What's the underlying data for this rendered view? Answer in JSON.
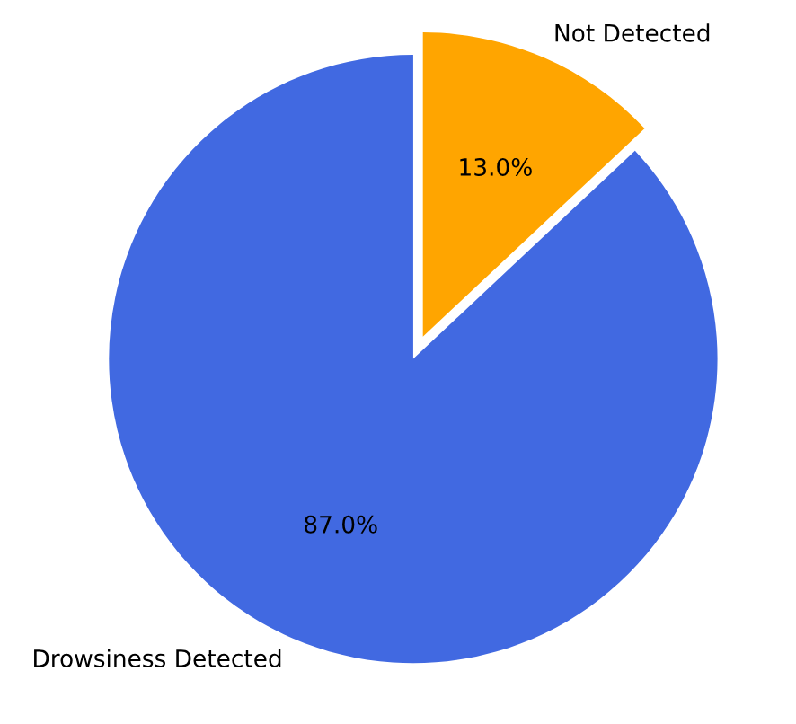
{
  "chart_data": {
    "type": "pie",
    "categories": [
      "Drowsiness Detected",
      "Not Detected"
    ],
    "values": [
      87.0,
      13.0
    ],
    "colors": [
      "#4169e1",
      "#ffa500"
    ],
    "value_labels": [
      "87.0%",
      "13.0%"
    ]
  }
}
